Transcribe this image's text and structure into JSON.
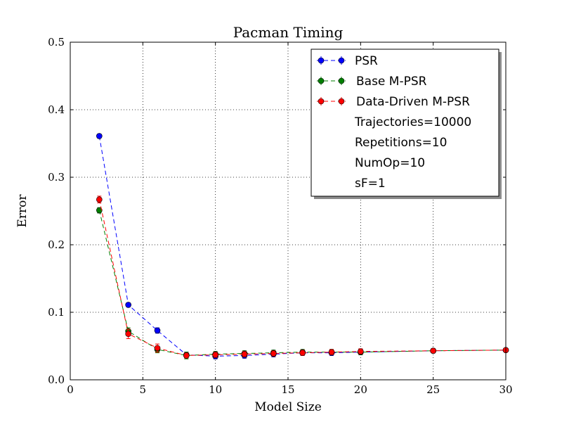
{
  "chart_data": {
    "type": "line",
    "title": "Pacman Timing",
    "xlabel": "Model Size",
    "ylabel": "Error",
    "xlim": [
      0,
      30
    ],
    "ylim": [
      0.0,
      0.5
    ],
    "xticks": [
      0,
      5,
      10,
      15,
      20,
      25,
      30
    ],
    "yticks": [
      0.0,
      0.1,
      0.2,
      0.3,
      0.4,
      0.5
    ],
    "xtick_labels": [
      "0",
      "5",
      "10",
      "15",
      "20",
      "25",
      "30"
    ],
    "ytick_labels": [
      "0.0",
      "0.1",
      "0.2",
      "0.3",
      "0.4",
      "0.5"
    ],
    "grid": true,
    "legend_position": "top-right",
    "x": [
      2,
      4,
      6,
      8,
      10,
      12,
      14,
      16,
      18,
      20,
      25,
      30
    ],
    "series": [
      {
        "name": "PSR",
        "color": "#0000ff",
        "values": [
          0.361,
          0.111,
          0.073,
          0.037,
          0.035,
          0.036,
          0.038,
          0.04,
          0.04,
          0.041,
          0.043,
          0.044
        ],
        "errors": [
          0.003,
          0.003,
          0.004,
          0.004,
          0.004,
          0.004,
          0.004,
          0.004,
          0.004,
          0.004,
          0.003,
          0.002
        ]
      },
      {
        "name": "Base M-PSR",
        "color": "#007f00",
        "values": [
          0.251,
          0.072,
          0.045,
          0.036,
          0.038,
          0.039,
          0.04,
          0.041,
          0.041,
          0.041,
          0.043,
          0.044
        ],
        "errors": [
          0.004,
          0.005,
          0.005,
          0.005,
          0.004,
          0.004,
          0.004,
          0.004,
          0.004,
          0.004,
          0.003,
          0.002
        ]
      },
      {
        "name": "Data-Driven M-PSR",
        "color": "#ff0000",
        "values": [
          0.267,
          0.068,
          0.047,
          0.036,
          0.037,
          0.038,
          0.039,
          0.04,
          0.041,
          0.042,
          0.043,
          0.044
        ],
        "errors": [
          0.005,
          0.007,
          0.006,
          0.004,
          0.004,
          0.004,
          0.004,
          0.004,
          0.004,
          0.004,
          0.003,
          0.002
        ]
      }
    ],
    "legend_extra_lines": [
      "Trajectories=10000",
      "Repetitions=10",
      "NumOp=10",
      "sF=1"
    ]
  }
}
